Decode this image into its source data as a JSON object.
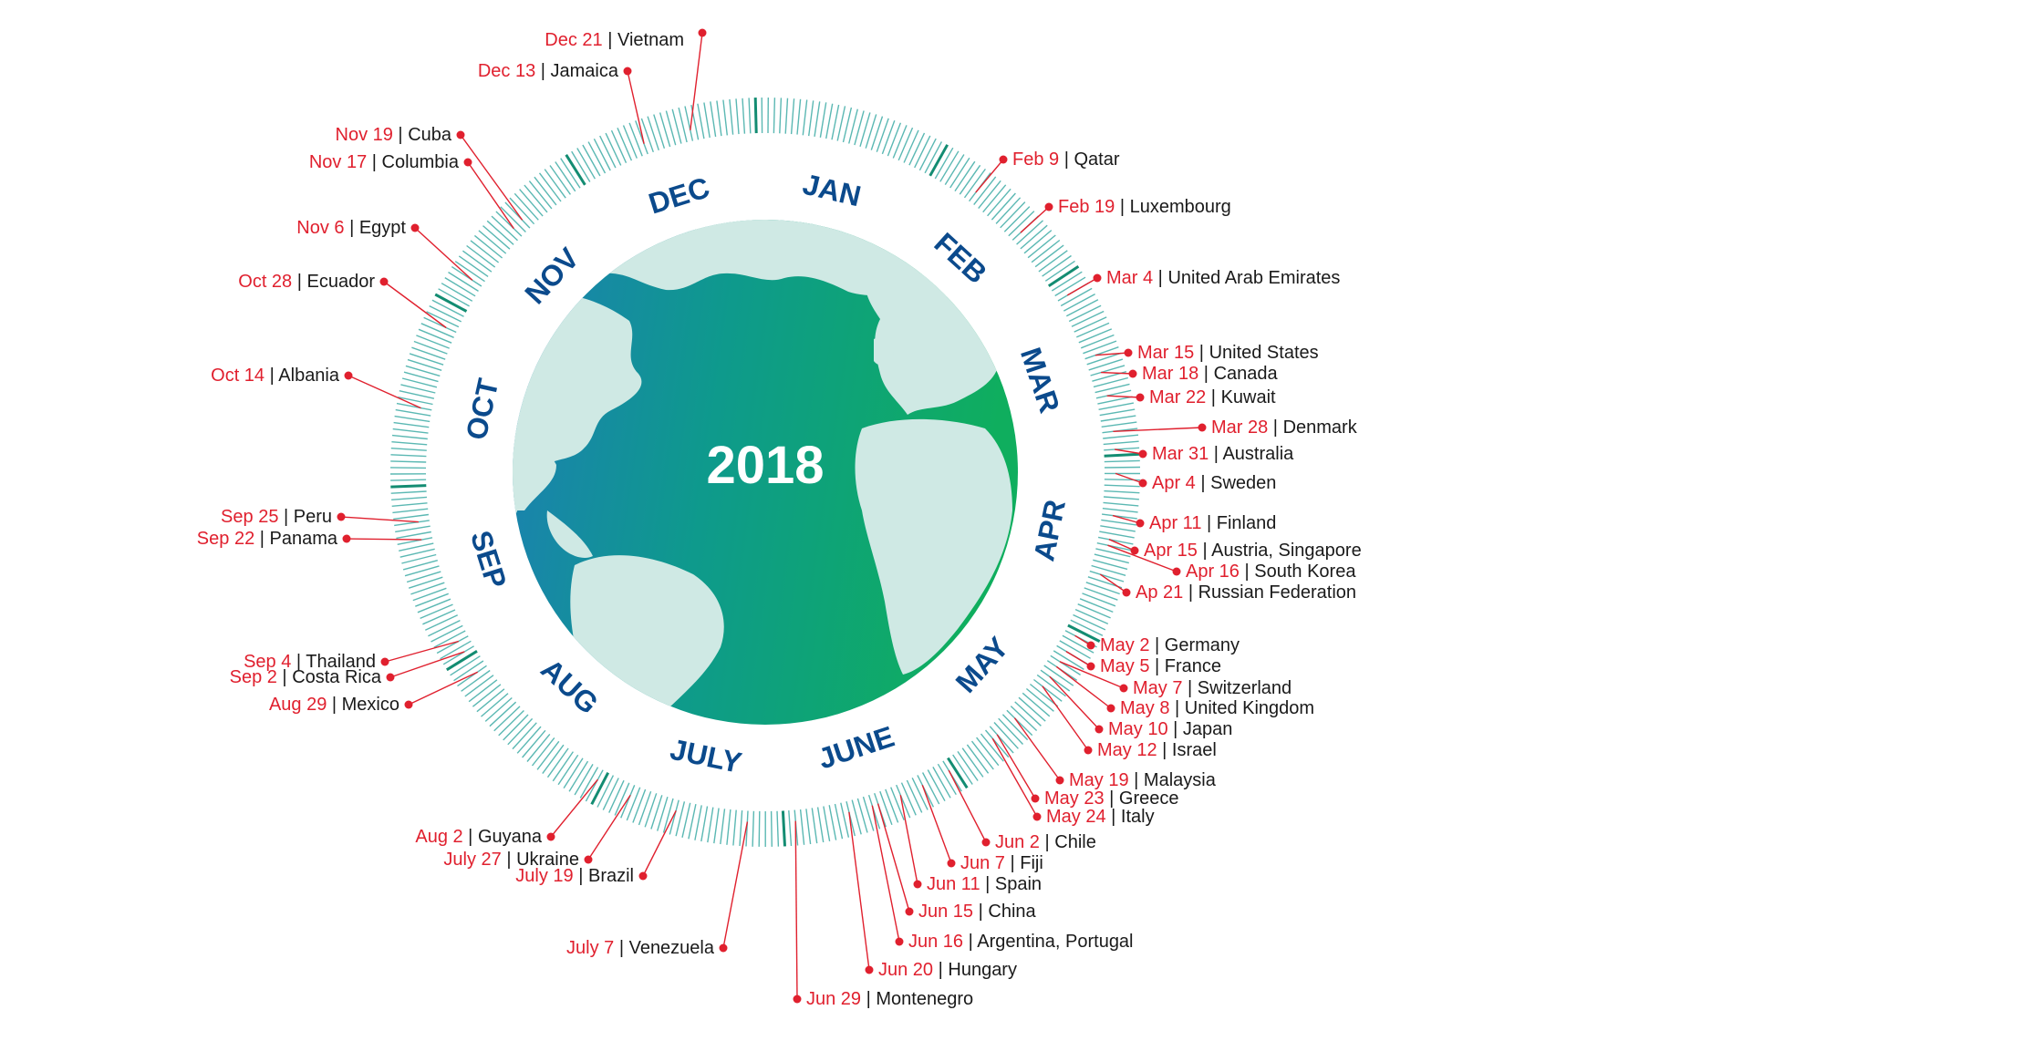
{
  "center_label": "2018",
  "months": [
    "JAN",
    "FEB",
    "MAR",
    "APR",
    "MAY",
    "JUNE",
    "JULY",
    "AUG",
    "SEP",
    "OCT",
    "NOV",
    "DEC"
  ],
  "colors": {
    "date_text": "#e0202e",
    "connector": "#e0202e",
    "country_text": "#1a1a1a",
    "month_text": "#0b4a8c",
    "ring_ticks": "#5bb8b3",
    "ring_ticks_major": "#138c72",
    "ocean_dark": "#12889a",
    "ocean_green": "#0fa56c",
    "land": "#cfe9e4"
  },
  "entries": [
    {
      "date": "Dec 21",
      "country": "Vietnam",
      "day_of_year": 355
    },
    {
      "date": "Dec 13",
      "country": "Jamaica",
      "day_of_year": 347
    },
    {
      "date": "Nov 19",
      "country": "Cuba",
      "day_of_year": 323
    },
    {
      "date": "Nov 17",
      "country": "Columbia",
      "day_of_year": 321
    },
    {
      "date": "Nov 6",
      "country": "Egypt",
      "day_of_year": 310
    },
    {
      "date": "Oct 28",
      "country": "Ecuador",
      "day_of_year": 301
    },
    {
      "date": "Oct 14",
      "country": "Albania",
      "day_of_year": 287
    },
    {
      "date": "Sep 25",
      "country": "Peru",
      "day_of_year": 268
    },
    {
      "date": "Sep 22",
      "country": "Panama",
      "day_of_year": 265
    },
    {
      "date": "Sep 4",
      "country": "Thailand",
      "day_of_year": 247
    },
    {
      "date": "Sep 2",
      "country": "Costa Rica",
      "day_of_year": 245
    },
    {
      "date": "Aug 29",
      "country": "Mexico",
      "day_of_year": 241
    },
    {
      "date": "Aug 2",
      "country": "Guyana",
      "day_of_year": 214
    },
    {
      "date": "July 27",
      "country": "Ukraine",
      "day_of_year": 208
    },
    {
      "date": "July 19",
      "country": "Brazil",
      "day_of_year": 200
    },
    {
      "date": "July 7",
      "country": "Venezuela",
      "day_of_year": 188
    },
    {
      "date": "Jun 29",
      "country": "Montenegro",
      "day_of_year": 180
    },
    {
      "date": "Jun 20",
      "country": "Hungary",
      "day_of_year": 171
    },
    {
      "date": "Jun 16",
      "country": "Argentina, Portugal",
      "day_of_year": 167
    },
    {
      "date": "Jun 15",
      "country": "China",
      "day_of_year": 166
    },
    {
      "date": "Jun 11",
      "country": "Spain",
      "day_of_year": 162
    },
    {
      "date": "Jun 7",
      "country": "Fiji",
      "day_of_year": 158
    },
    {
      "date": "Jun 2",
      "country": "Chile",
      "day_of_year": 153
    },
    {
      "date": "May 24",
      "country": "Italy",
      "day_of_year": 144
    },
    {
      "date": "May 23",
      "country": "Greece",
      "day_of_year": 143
    },
    {
      "date": "May 19",
      "country": "Malaysia",
      "day_of_year": 139
    },
    {
      "date": "May 12",
      "country": "Israel",
      "day_of_year": 132
    },
    {
      "date": "May 10",
      "country": "Japan",
      "day_of_year": 130
    },
    {
      "date": "May 8",
      "country": "United Kingdom",
      "day_of_year": 128
    },
    {
      "date": "May 7",
      "country": "Switzerland",
      "day_of_year": 127
    },
    {
      "date": "May 5",
      "country": "France",
      "day_of_year": 125
    },
    {
      "date": "May 2",
      "country": "Germany",
      "day_of_year": 122
    },
    {
      "date": "Ap 21",
      "country": "Russian Federation",
      "day_of_year": 111
    },
    {
      "date": "Apr 16",
      "country": "South Korea",
      "day_of_year": 106
    },
    {
      "date": "Apr 15",
      "country": "Austria, Singapore",
      "day_of_year": 105
    },
    {
      "date": "Apr 11",
      "country": "Finland",
      "day_of_year": 101
    },
    {
      "date": "Apr 4",
      "country": "Sweden",
      "day_of_year": 94
    },
    {
      "date": "Mar 31",
      "country": "Australia",
      "day_of_year": 90
    },
    {
      "date": "Mar 28",
      "country": "Denmark",
      "day_of_year": 87
    },
    {
      "date": "Mar 22",
      "country": "Kuwait",
      "day_of_year": 81
    },
    {
      "date": "Mar 18",
      "country": "Canada",
      "day_of_year": 77
    },
    {
      "date": "Mar 15",
      "country": "United States",
      "day_of_year": 74
    },
    {
      "date": "Mar 4",
      "country": "United Arab Emirates",
      "day_of_year": 63
    },
    {
      "date": "Feb 19",
      "country": "Luxembourg",
      "day_of_year": 50
    },
    {
      "date": "Feb 9",
      "country": "Qatar",
      "day_of_year": 40
    }
  ]
}
